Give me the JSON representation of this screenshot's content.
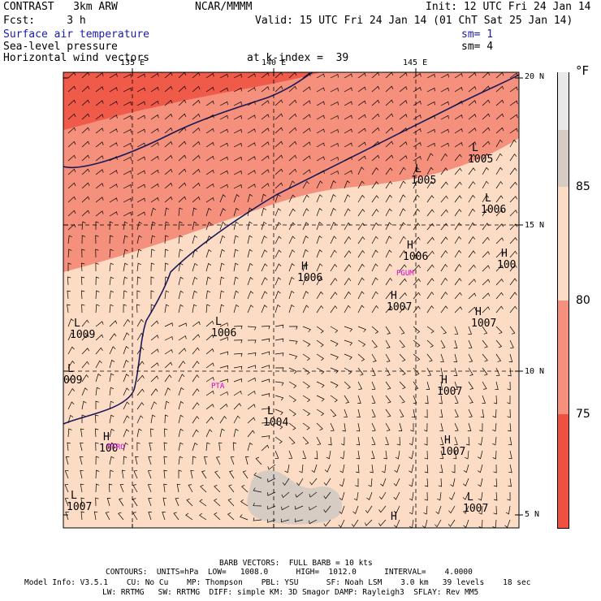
{
  "header": {
    "model": "CONTRAST   3km ARW",
    "org": "NCAR/MMMM",
    "init": "Init: 12 UTC Fri 24 Jan 14",
    "fcst": "Fcst:     3 h",
    "valid": "Valid: 15 UTC Fri 24 Jan 14 (01 ChT Sat 25 Jan 14)",
    "fields": [
      {
        "label": "Surface air temperature",
        "sm": "sm= 1",
        "color": "#1a1aa8"
      },
      {
        "label": "Sea-level pressure",
        "sm": "sm= 4",
        "color": "#000000"
      },
      {
        "label": "Horizontal wind vectors",
        "sm": "",
        "color": "#000000"
      }
    ],
    "level": "at k-index =  39"
  },
  "map": {
    "lon_labels": [
      "135 E",
      "140 E",
      "145 E"
    ],
    "lat_labels": [
      "20 N",
      "15 N",
      "10 N",
      "5 N"
    ],
    "pressure_centers": [
      {
        "type": "L",
        "value": "1005"
      },
      {
        "type": "L",
        "value": "1005"
      },
      {
        "type": "L",
        "value": "1006"
      },
      {
        "type": "H",
        "value": "1006"
      },
      {
        "type": "H",
        "value": "100"
      },
      {
        "type": "H",
        "value": "1006"
      },
      {
        "type": "H",
        "value": "1007"
      },
      {
        "type": "H",
        "value": "1007"
      },
      {
        "type": "L",
        "value": "1009"
      },
      {
        "type": "L",
        "value": "1006"
      },
      {
        "type": "H",
        "value": "1007"
      },
      {
        "type": "L",
        "value": "009"
      },
      {
        "type": "L",
        "value": "1004"
      },
      {
        "type": "H",
        "value": "1007"
      },
      {
        "type": "H",
        "value": "100"
      },
      {
        "type": "L",
        "value": "1007"
      },
      {
        "type": "L",
        "value": "1007"
      },
      {
        "type": "H",
        "value": ""
      }
    ],
    "stations": [
      "PGUM",
      "PTA",
      "PTRO"
    ]
  },
  "colorbar": {
    "unit": "°F",
    "ticks": [
      "85",
      "80",
      "75"
    ],
    "colors": [
      "#e8e8e8",
      "#d6ccc4",
      "#fcdcc4",
      "#f4907c",
      "#f05040",
      "#ee2c26"
    ]
  },
  "footer": {
    "barb": "BARB VECTORS:  FULL BARB = 10 kts",
    "contours": "CONTOURS:  UNITS=hPa  LOW=   1008.0      HIGH=  1012.0      INTERVAL=    4.0000",
    "model_info": "Model Info: V3.5.1    CU: No Cu    MP: Thompson    PBL: YSU      SF: Noah LSM    3.0 km   39 levels    18 sec",
    "physics": "LW: RRTMG   SW: RRTMG  DIFF: simple KM: 3D Smagor DAMP: Rayleigh3  SFLAY: Rev MM5"
  }
}
